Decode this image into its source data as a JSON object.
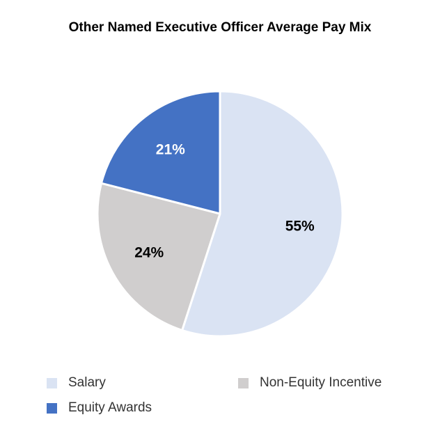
{
  "chart_data": {
    "type": "pie",
    "title": "Other Named Executive Officer Average Pay Mix",
    "slices": [
      {
        "label": "Salary",
        "value": 55,
        "display": "55%",
        "color": "#dae3f3",
        "label_color": "#000000"
      },
      {
        "label": "Non-Equity Incentive",
        "value": 24,
        "display": "24%",
        "color": "#d0cece",
        "label_color": "#000000"
      },
      {
        "label": "Equity Awards",
        "value": 21,
        "display": "21%",
        "color": "#4472c4",
        "label_color": "#ffffff"
      }
    ],
    "legend": {
      "placement": "bottom",
      "entries": [
        "Salary",
        "Equity Awards",
        "Non-Equity Incentive"
      ]
    }
  }
}
